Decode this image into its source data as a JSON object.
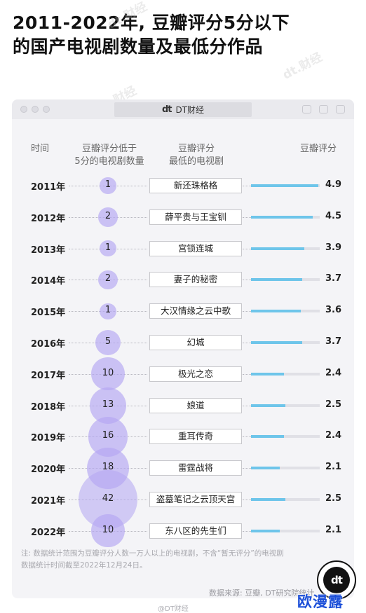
{
  "title": {
    "line1": "2011-2022年, 豆瓣评分5分以下",
    "line2": "的国产电视剧数量及最低分作品"
  },
  "window": {
    "url_logo": "dt",
    "url_text": "DT财经"
  },
  "headers": {
    "year": "时间",
    "count_line1": "豆瓣评分低于",
    "count_line2": "5分的电视剧数量",
    "drama_line1": "豆瓣评分",
    "drama_line2": "最低的电视剧",
    "score": "豆瓣评分"
  },
  "chart_data": {
    "type": "table",
    "columns": [
      "时间",
      "豆瓣评分低于5分的电视剧数量",
      "豆瓣评分最低的电视剧",
      "豆瓣评分"
    ],
    "rows": [
      {
        "year": "2011年",
        "count": 1,
        "drama": "新还珠格格",
        "score": 4.9
      },
      {
        "year": "2012年",
        "count": 2,
        "drama": "薛平贵与王宝钏",
        "score": 4.5
      },
      {
        "year": "2013年",
        "count": 1,
        "drama": "宫锁连城",
        "score": 3.9
      },
      {
        "year": "2014年",
        "count": 2,
        "drama": "妻子的秘密",
        "score": 3.7
      },
      {
        "year": "2015年",
        "count": 1,
        "drama": "大汉情缘之云中歌",
        "score": 3.6
      },
      {
        "year": "2016年",
        "count": 5,
        "drama": "幻城",
        "score": 3.7
      },
      {
        "year": "2017年",
        "count": 10,
        "drama": "极光之恋",
        "score": 2.4
      },
      {
        "year": "2018年",
        "count": 13,
        "drama": "娘道",
        "score": 2.5
      },
      {
        "year": "2019年",
        "count": 16,
        "drama": "重耳传奇",
        "score": 2.4
      },
      {
        "year": "2020年",
        "count": 18,
        "drama": "雷霆战将",
        "score": 2.1
      },
      {
        "year": "2021年",
        "count": 42,
        "drama": "盗墓笔记之云顶天宫",
        "score": 2.5
      },
      {
        "year": "2022年",
        "count": 10,
        "drama": "东八区的先生们",
        "score": 2.1
      }
    ],
    "score_max": 5,
    "colors": {
      "bubble": "#b3a6f2",
      "bar": "#6ec5ea",
      "track": "#e0e0e6"
    }
  },
  "footer": {
    "note_line1": "注: 数据统计范围为豆瓣评分人数一万人以上的电视剧，不含“暂无评分”的电视剧",
    "note_line2": "数据统计时间截至2022年12月24日。",
    "source": "数据来源: 豆瓣, DT研究院统计",
    "weibo": "@DT财经",
    "badge": "dt",
    "stamp": "欧漫露"
  },
  "watermark": "dt.财经"
}
